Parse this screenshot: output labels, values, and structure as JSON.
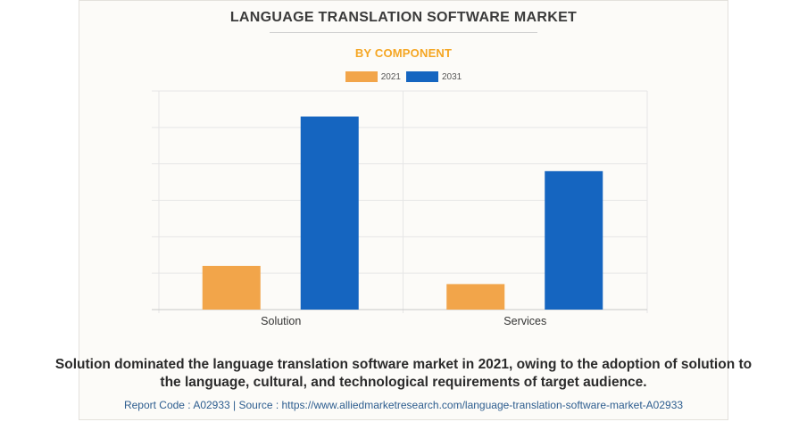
{
  "header": {
    "title": "LANGUAGE TRANSLATION SOFTWARE MARKET",
    "subtitle": "BY COMPONENT"
  },
  "colors": {
    "series_2021": "#f2a54a",
    "series_2031": "#1565c0",
    "subtitle": "#f5a623",
    "grid": "#e6e6e6"
  },
  "chart_data": {
    "type": "bar",
    "title": "LANGUAGE TRANSLATION SOFTWARE MARKET",
    "subtitle": "BY COMPONENT",
    "categories": [
      "Solution",
      "Services"
    ],
    "series": [
      {
        "name": "2021",
        "values": [
          1.2,
          0.7
        ]
      },
      {
        "name": "2031",
        "values": [
          5.3,
          3.8
        ]
      }
    ],
    "ylim": [
      0,
      6
    ],
    "grid": true,
    "legend": "top-center",
    "xlabel": "",
    "ylabel": ""
  },
  "caption": "Solution dominated the language translation software market in 2021, owing to the adoption of solution to the language, cultural, and technological requirements of target audience.",
  "footer": "Report Code : A02933  |  Source : https://www.alliedmarketresearch.com/language-translation-software-market-A02933"
}
